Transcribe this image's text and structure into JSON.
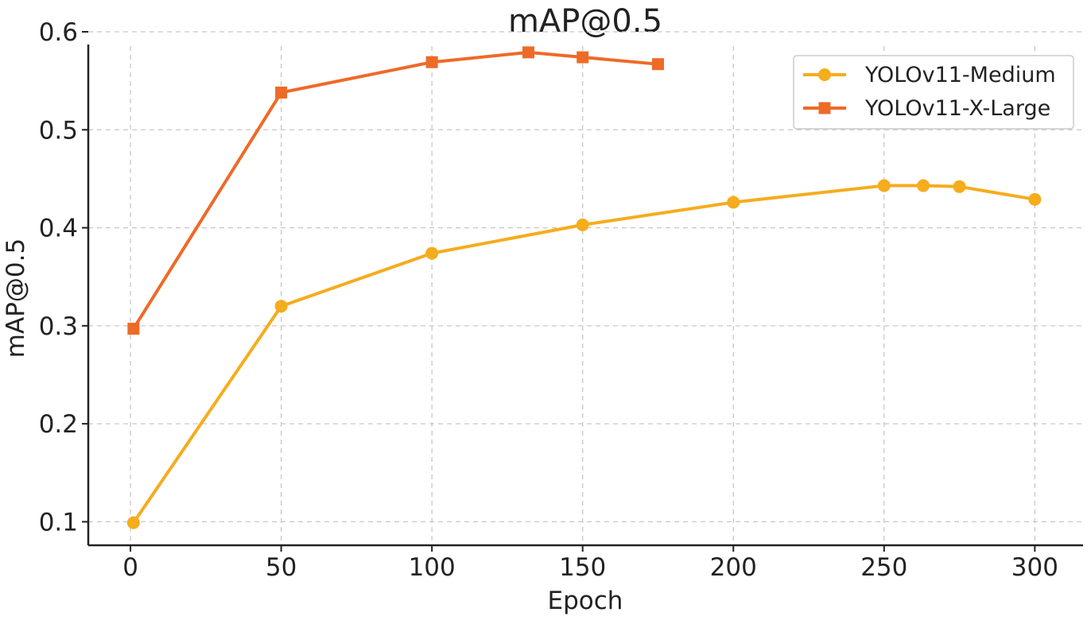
{
  "chart_data": {
    "type": "line",
    "title": "mAP@0.5",
    "xlabel": "Epoch",
    "ylabel": "mAP@0.5",
    "xlim": [
      -14,
      316
    ],
    "ylim": [
      0.076,
      0.6
    ],
    "xticks": [
      0,
      50,
      100,
      150,
      200,
      250,
      300
    ],
    "yticks": [
      0.1,
      0.2,
      0.3,
      0.4,
      0.5,
      0.6
    ],
    "xtick_labels": [
      "0",
      "50",
      "100",
      "150",
      "200",
      "250",
      "300"
    ],
    "ytick_labels": [
      "0.1",
      "0.2",
      "0.3",
      "0.4",
      "0.5",
      "0.6"
    ],
    "grid": true,
    "legend_position": "top-right",
    "series": [
      {
        "name": "YOLOv11-Medium",
        "color": "#f5ac1d",
        "marker": "circle",
        "x": [
          1,
          50,
          100,
          150,
          200,
          250,
          263,
          275,
          300
        ],
        "y": [
          0.099,
          0.32,
          0.374,
          0.403,
          0.426,
          0.443,
          0.443,
          0.442,
          0.429
        ]
      },
      {
        "name": "YOLOv11-X-Large",
        "color": "#ee6a27",
        "marker": "square",
        "x": [
          1,
          50,
          100,
          132,
          150,
          175
        ],
        "y": [
          0.297,
          0.538,
          0.569,
          0.579,
          0.574,
          0.567
        ]
      }
    ]
  }
}
